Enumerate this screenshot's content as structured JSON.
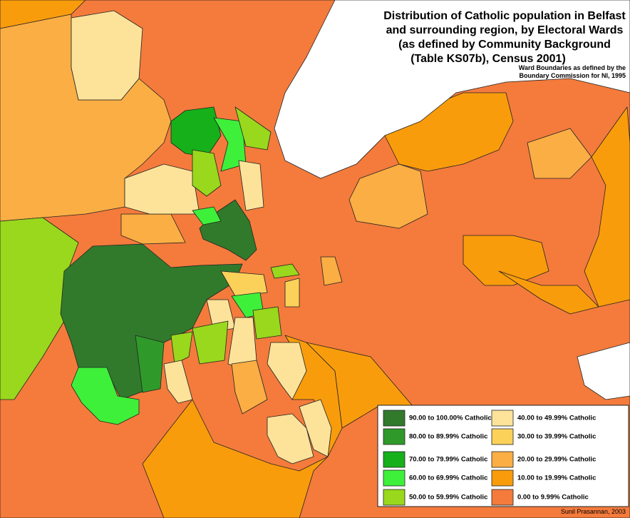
{
  "title": [
    "Distribution of Catholic population in Belfast",
    "and surrounding region, by Electoral Wards",
    "(as defined by Community Background",
    "(Table KS07b), Census 2001)"
  ],
  "subtitle": [
    "Ward Boundaries as defined by the",
    "Boundary Commission for NI, 1995"
  ],
  "legend": [
    {
      "label": "90.00 to 100.00% Catholic",
      "color": "#317a2c"
    },
    {
      "label": "80.00 to 89.99% Catholic",
      "color": "#2f9a2a"
    },
    {
      "label": "70.00 to 79.99% Catholic",
      "color": "#16b01a"
    },
    {
      "label": "60.00 to 69.99% Catholic",
      "color": "#3ef03a"
    },
    {
      "label": "50.00 to 59.99% Catholic",
      "color": "#99d81c"
    },
    {
      "label": "40.00 to 49.99% Catholic",
      "color": "#fde39a"
    },
    {
      "label": "30.00 to 39.99% Catholic",
      "color": "#fcd15a"
    },
    {
      "label": "20.00 to 29.99% Catholic",
      "color": "#fbae44"
    },
    {
      "label": "10.00 to 19.99% Catholic",
      "color": "#f99c0c"
    },
    {
      "label": "0.00 to 9.99% Catholic",
      "color": "#f47b3c"
    }
  ],
  "credit": "Sunil Prasannan, 2003"
}
